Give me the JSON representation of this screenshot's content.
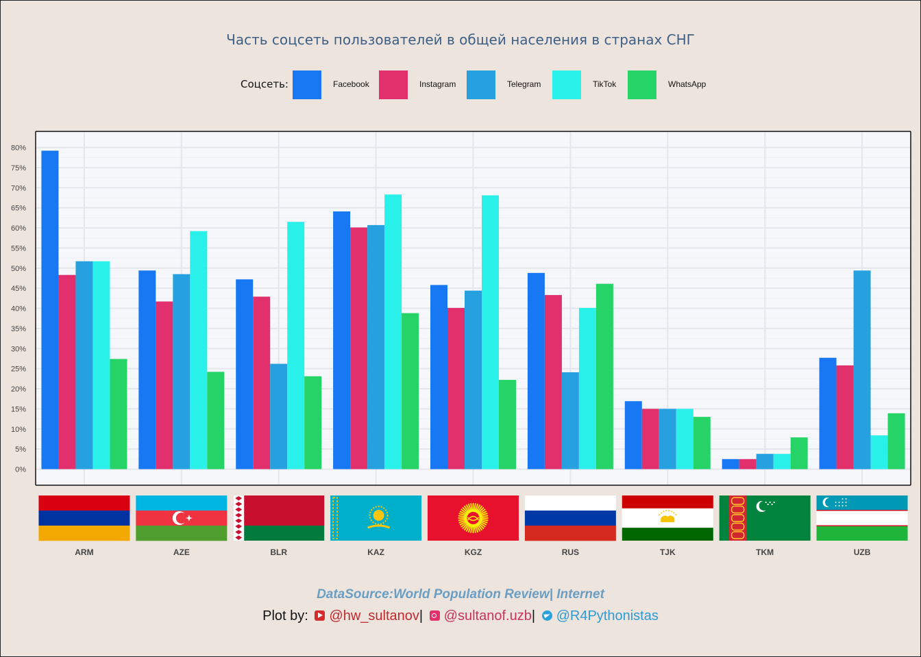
{
  "title": "Часть соцсеть пользователей  в общей населения в странах СНГ",
  "legend": {
    "title": "Соцсеть:",
    "items": [
      {
        "label": "Facebook",
        "color": "#1877f2"
      },
      {
        "label": "Instagram",
        "color": "#e1306c"
      },
      {
        "label": "Telegram",
        "color": "#27a0e0"
      },
      {
        "label": "TikTok",
        "color": "#2af0ea"
      },
      {
        "label": "WhatsApp",
        "color": "#25d366"
      }
    ]
  },
  "chart_data": {
    "type": "bar",
    "categories": [
      "ARM",
      "AZE",
      "BLR",
      "KAZ",
      "KGZ",
      "RUS",
      "TJK",
      "TKM",
      "UZB"
    ],
    "series": [
      {
        "name": "Facebook",
        "values": [
          79.2,
          49.4,
          47.2,
          64.1,
          45.8,
          48.8,
          16.9,
          2.5,
          27.7
        ]
      },
      {
        "name": "Instagram",
        "values": [
          48.3,
          41.7,
          42.9,
          60.1,
          40.1,
          43.3,
          15.0,
          2.5,
          25.8
        ]
      },
      {
        "name": "Telegram",
        "values": [
          51.7,
          48.5,
          26.2,
          60.7,
          44.4,
          24.1,
          15.0,
          3.8,
          49.4
        ]
      },
      {
        "name": "TikTok",
        "values": [
          51.7,
          59.2,
          61.5,
          68.3,
          68.1,
          40.1,
          15.0,
          3.8,
          8.4
        ]
      },
      {
        "name": "WhatsApp",
        "values": [
          27.4,
          24.2,
          23.1,
          38.8,
          22.2,
          46.1,
          13.0,
          7.9,
          13.9
        ]
      }
    ],
    "ylim": [
      -4,
      84
    ],
    "yticks": [
      0,
      5,
      10,
      15,
      20,
      25,
      30,
      35,
      40,
      45,
      50,
      55,
      60,
      65,
      70,
      75,
      80
    ],
    "ytick_suffix": "%",
    "grid": true,
    "legend_position": "top"
  },
  "footer": {
    "source": "DataSource:World Population Review| Internet",
    "credit_prefix": "Plot by:",
    "youtube_handle": "@hw_sultanov",
    "sep1": "|",
    "instagram_handle": "@sultanof.uzb",
    "sep2": "|",
    "telegram_handle": "@R4Pythonistas"
  },
  "icons": [
    "youtube-icon",
    "instagram-icon",
    "telegram-icon"
  ]
}
